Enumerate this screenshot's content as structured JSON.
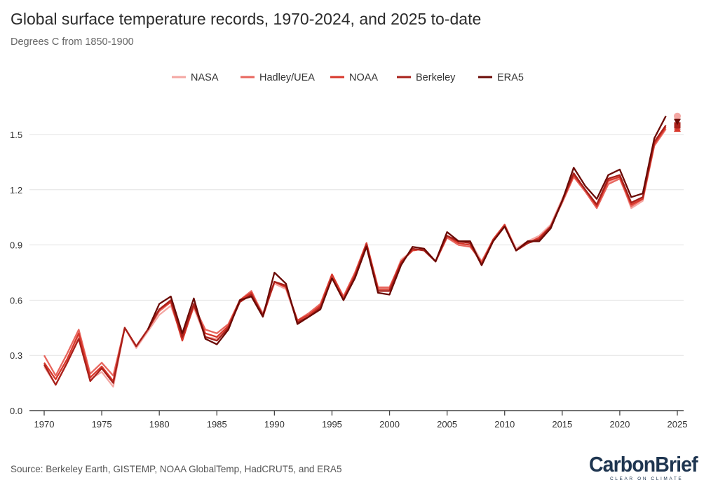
{
  "chart_data": {
    "type": "line",
    "title": "Global surface temperature records, 1970-2024, and 2025 to-date",
    "subtitle": "Degrees C from 1850-1900",
    "source": "Source: Berkeley Earth, GISTEMP, NOAA GlobalTemp, HadCRUT5, and ERA5",
    "xlabel": "",
    "ylabel": "",
    "xlim": [
      1970,
      2025
    ],
    "ylim": [
      0,
      1.65
    ],
    "xticks": [
      1970,
      1975,
      1980,
      1985,
      1990,
      1995,
      2000,
      2005,
      2010,
      2015,
      2020,
      2025
    ],
    "yticks": [
      0.0,
      0.3,
      0.6,
      0.9,
      1.2,
      1.5
    ],
    "ytick_labels": [
      "0.0",
      "0.3",
      "0.6",
      "0.9",
      "1.2",
      "1.5"
    ],
    "grid": "horizontal",
    "legend_position": "top-center",
    "x_start": 1970,
    "series": [
      {
        "name": "NASA",
        "color": "#f4a7a3",
        "start": 1970,
        "values": [
          0.24,
          0.14,
          0.26,
          0.4,
          0.17,
          0.21,
          0.13,
          0.45,
          0.34,
          0.43,
          0.52,
          0.57,
          0.4,
          0.56,
          0.4,
          0.39,
          0.45,
          0.6,
          0.64,
          0.53,
          0.69,
          0.66,
          0.48,
          0.51,
          0.56,
          0.72,
          0.62,
          0.75,
          0.91,
          0.66,
          0.66,
          0.82,
          0.87,
          0.88,
          0.81,
          0.95,
          0.91,
          0.92,
          0.81,
          0.93,
          1.01,
          0.88,
          0.92,
          0.95,
          1.01,
          1.15,
          1.28,
          1.19,
          1.11,
          1.24,
          1.27,
          1.1,
          1.14,
          1.44,
          1.53
        ],
        "to_date_2025": 1.6,
        "marker_2025": "circle"
      },
      {
        "name": "Hadley/UEA",
        "color": "#e8665e",
        "start": 1970,
        "values": [
          0.3,
          0.19,
          0.31,
          0.44,
          0.2,
          0.26,
          0.19,
          0.45,
          0.35,
          0.44,
          0.54,
          0.59,
          0.39,
          0.57,
          0.44,
          0.42,
          0.47,
          0.6,
          0.65,
          0.52,
          0.7,
          0.67,
          0.49,
          0.53,
          0.58,
          0.74,
          0.62,
          0.75,
          0.91,
          0.67,
          0.67,
          0.81,
          0.87,
          0.88,
          0.81,
          0.94,
          0.9,
          0.89,
          0.81,
          0.92,
          1.01,
          0.87,
          0.91,
          0.94,
          1.0,
          1.13,
          1.27,
          1.19,
          1.1,
          1.23,
          1.26,
          1.11,
          1.15,
          1.44,
          1.53
        ],
        "to_date_2025": 1.54,
        "marker_2025": "triangle-up"
      },
      {
        "name": "NOAA",
        "color": "#d8372b",
        "start": 1970,
        "values": [
          0.26,
          0.17,
          0.28,
          0.42,
          0.18,
          0.24,
          0.16,
          0.45,
          0.35,
          0.44,
          0.55,
          0.59,
          0.38,
          0.57,
          0.42,
          0.4,
          0.46,
          0.6,
          0.64,
          0.51,
          0.7,
          0.67,
          0.49,
          0.52,
          0.57,
          0.74,
          0.61,
          0.74,
          0.91,
          0.66,
          0.66,
          0.81,
          0.87,
          0.88,
          0.81,
          0.95,
          0.91,
          0.9,
          0.8,
          0.93,
          1.01,
          0.87,
          0.91,
          0.94,
          1.0,
          1.14,
          1.28,
          1.2,
          1.11,
          1.25,
          1.27,
          1.12,
          1.15,
          1.45,
          1.54
        ],
        "to_date_2025": 1.53,
        "marker_2025": "triangle-up"
      },
      {
        "name": "Berkeley",
        "color": "#a8201a",
        "start": 1970,
        "values": [
          0.25,
          0.14,
          0.26,
          0.39,
          0.16,
          0.23,
          0.15,
          0.45,
          0.35,
          0.44,
          0.55,
          0.6,
          0.4,
          0.58,
          0.4,
          0.38,
          0.45,
          0.59,
          0.63,
          0.52,
          0.7,
          0.68,
          0.48,
          0.51,
          0.56,
          0.72,
          0.6,
          0.73,
          0.9,
          0.65,
          0.65,
          0.8,
          0.88,
          0.87,
          0.81,
          0.95,
          0.92,
          0.91,
          0.79,
          0.92,
          1.0,
          0.87,
          0.91,
          0.93,
          1.0,
          1.14,
          1.29,
          1.2,
          1.12,
          1.26,
          1.28,
          1.13,
          1.16,
          1.46,
          1.55
        ],
        "to_date_2025": 1.55,
        "marker_2025": "square"
      },
      {
        "name": "ERA5",
        "color": "#6a0a05",
        "start": 1979,
        "values": [
          0.44,
          0.58,
          0.62,
          0.42,
          0.61,
          0.39,
          0.36,
          0.44,
          0.6,
          0.62,
          0.51,
          0.75,
          0.69,
          0.47,
          0.51,
          0.55,
          0.72,
          0.6,
          0.72,
          0.89,
          0.64,
          0.63,
          0.79,
          0.89,
          0.88,
          0.81,
          0.97,
          0.92,
          0.92,
          0.79,
          0.92,
          1.0,
          0.87,
          0.92,
          0.92,
          0.99,
          1.14,
          1.32,
          1.22,
          1.15,
          1.28,
          1.31,
          1.16,
          1.18,
          1.48,
          1.6
        ],
        "to_date_2025": 1.57,
        "marker_2025": "triangle-down"
      }
    ]
  },
  "logo": {
    "name": "CarbonBrief",
    "tagline": "CLEAR ON CLIMATE"
  }
}
